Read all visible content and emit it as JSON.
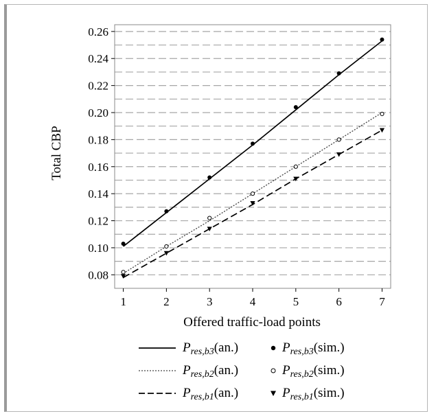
{
  "chart_data": {
    "type": "line",
    "title": "",
    "xlabel": "Offered traffic-load points",
    "ylabel": "Total CBP",
    "x": [
      1,
      2,
      3,
      4,
      5,
      6,
      7
    ],
    "xlim": [
      0.8,
      7.2
    ],
    "ylim": [
      0.07,
      0.265
    ],
    "x_ticks": [
      "1",
      "2",
      "3",
      "4",
      "5",
      "6",
      "7"
    ],
    "y_ticks": [
      "0.08",
      "0.10",
      "0.12",
      "0.14",
      "0.16",
      "0.18",
      "0.20",
      "0.22",
      "0.24",
      "0.26"
    ],
    "y_tick_values": [
      0.08,
      0.1,
      0.12,
      0.14,
      0.16,
      0.18,
      0.2,
      0.22,
      0.24,
      0.26
    ],
    "grid": "horizontal dashed",
    "series": [
      {
        "name": "P_res,b3(an.)",
        "kind": "line",
        "style": "solid",
        "color": "#000000",
        "values": [
          0.101,
          0.126,
          0.151,
          0.176,
          0.202,
          0.228,
          0.253
        ]
      },
      {
        "name": "P_res,b2(an.)",
        "kind": "line",
        "style": "dotted",
        "color": "#444444",
        "values": [
          0.081,
          0.101,
          0.12,
          0.14,
          0.16,
          0.18,
          0.2
        ]
      },
      {
        "name": "P_res,b1(an.)",
        "kind": "line",
        "style": "dashed",
        "color": "#000000",
        "values": [
          0.078,
          0.096,
          0.114,
          0.132,
          0.151,
          0.169,
          0.187
        ]
      },
      {
        "name": "P_res,b3(sim.)",
        "kind": "marker",
        "marker": "filled-circle",
        "color": "#000000",
        "values": [
          0.103,
          0.127,
          0.152,
          0.177,
          0.204,
          0.229,
          0.254
        ]
      },
      {
        "name": "P_res,b2(sim.)",
        "kind": "marker",
        "marker": "open-circle",
        "color": "#000000",
        "values": [
          0.082,
          0.101,
          0.122,
          0.14,
          0.16,
          0.18,
          0.199
        ]
      },
      {
        "name": "P_res,b1(sim.)",
        "kind": "marker",
        "marker": "filled-triangle-down",
        "color": "#000000",
        "values": [
          0.079,
          0.096,
          0.114,
          0.133,
          0.151,
          0.169,
          0.187
        ]
      }
    ],
    "legend": {
      "placement": "bottom",
      "entries": [
        {
          "sym": "P",
          "sub": "res,b3",
          "suffix": "(an.)",
          "swatch": "solid-line"
        },
        {
          "sym": "P",
          "sub": "res,b3",
          "suffix": "(sim.)",
          "swatch": "filled-circle"
        },
        {
          "sym": "P",
          "sub": "res,b2",
          "suffix": "(an.)",
          "swatch": "dotted-line"
        },
        {
          "sym": "P",
          "sub": "res,b2",
          "suffix": "(sim.)",
          "swatch": "open-circle"
        },
        {
          "sym": "P",
          "sub": "res,b1",
          "suffix": "(an.)",
          "swatch": "dashed-line"
        },
        {
          "sym": "P",
          "sub": "res,b1",
          "suffix": "(sim.)",
          "swatch": "filled-triangle-down"
        }
      ]
    }
  }
}
